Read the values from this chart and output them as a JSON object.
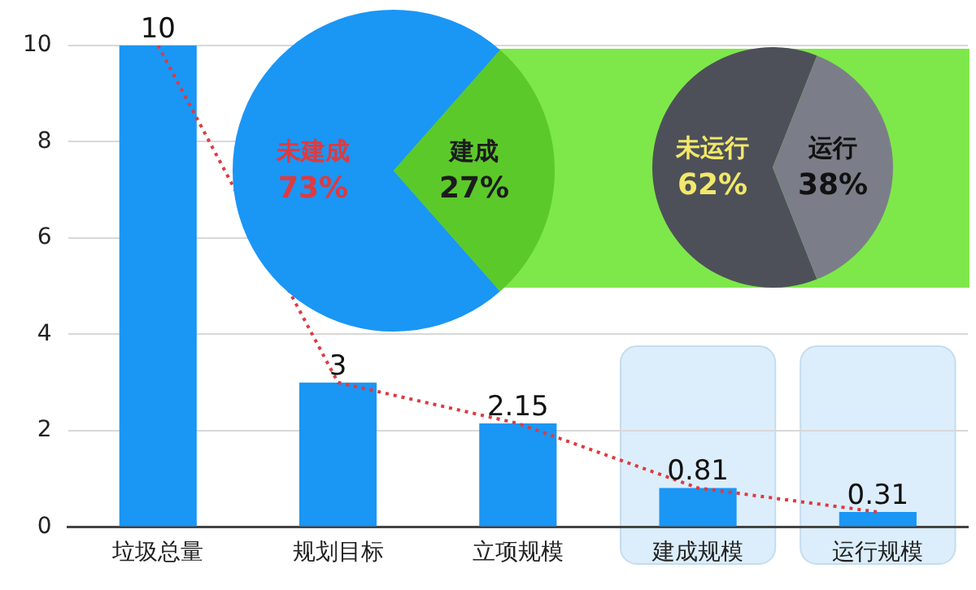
{
  "chart_data": [
    {
      "type": "bar",
      "categories": [
        "垃圾总量",
        "规划目标",
        "立项规模",
        "建成规模",
        "运行规模"
      ],
      "series": [
        {
          "type": "bar",
          "color": "#1a96f5",
          "values": [
            10,
            3,
            2.15,
            0.81,
            0.31
          ],
          "value_labels": [
            "10",
            "3",
            "2.15",
            "0.81",
            "0.31"
          ]
        },
        {
          "type": "line",
          "color": "#e0393e",
          "values": [
            10,
            3,
            2.15,
            0.81,
            0.31
          ],
          "line_style": "dotted",
          "marker": "none"
        }
      ],
      "ylim": [
        0,
        10
      ],
      "yticks": [
        0,
        2,
        4,
        6,
        8,
        10
      ],
      "grid": "y",
      "legend": false,
      "bands": [
        {
          "axis": "x",
          "from": "建成规模",
          "to": "建成规模",
          "color": "#dceefb"
        },
        {
          "axis": "x",
          "from": "运行规模",
          "to": "运行规模",
          "color": "#dceefb"
        }
      ]
    },
    {
      "type": "pie",
      "categories": [
        "未建成",
        "建成"
      ],
      "values": [
        73,
        27
      ],
      "colors": [
        "#1a96f5",
        "#5cc92a"
      ],
      "value_labels": [
        "73%",
        "27%"
      ],
      "legend": false
    },
    {
      "type": "pie",
      "categories": [
        "未运行",
        "运行"
      ],
      "values": [
        62,
        38
      ],
      "colors": [
        "#4d5059",
        "#7b7e88"
      ],
      "value_labels": [
        "62%",
        "38%"
      ],
      "legend": false
    }
  ]
}
